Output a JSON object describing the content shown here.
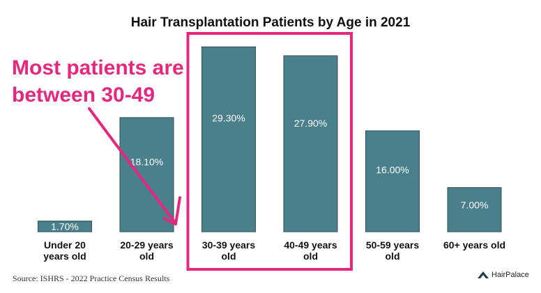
{
  "chart_data": {
    "type": "bar",
    "title": "Hair Transplantation Patients by Age in 2021",
    "categories": [
      "Under 20\nyears old",
      "20-29 years\nold",
      "30-39 years\nold",
      "40-49 years\nold",
      "50-59 years\nold",
      "60+ years old"
    ],
    "values": [
      1.7,
      18.1,
      29.3,
      27.9,
      16.0,
      7.0
    ],
    "value_labels": [
      "1.70%",
      "18.10%",
      "29.30%",
      "27.90%",
      "16.00%",
      "7.00%"
    ],
    "xlabel": "",
    "ylabel": "",
    "ylim": [
      0,
      30
    ],
    "grid": false,
    "legend": "none",
    "highlighted_categories": [
      2,
      3
    ]
  },
  "annotation": {
    "text_line1": "Most patients are",
    "text_line2": "between 30-49"
  },
  "source": "Source: ISHRS - 2022 Practice Census Results",
  "brand": "HairPalace",
  "colors": {
    "bar": "#4a7f8c",
    "bar_border": "#2f4f58",
    "highlight": "#e5287e",
    "bar_label": "#ffffff",
    "axis_label": "#111111"
  }
}
